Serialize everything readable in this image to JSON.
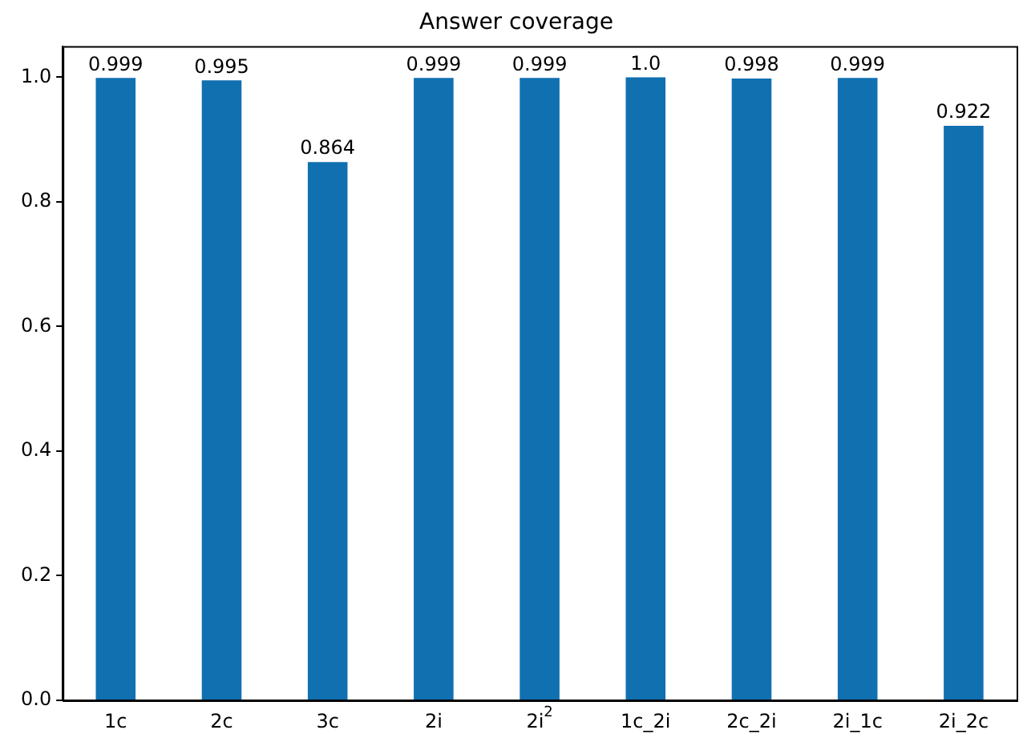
{
  "chart_data": {
    "type": "bar",
    "title": "Answer coverage",
    "categories": [
      "1c",
      "2c",
      "3c",
      "2i",
      "2i$^{2}$",
      "1c_2i",
      "2c_2i",
      "2i_1c",
      "2i_2c"
    ],
    "values": [
      0.999,
      0.995,
      0.864,
      0.999,
      0.999,
      1.0,
      0.998,
      0.999,
      0.922
    ],
    "value_labels": [
      "0.999",
      "0.995",
      "0.864",
      "0.999",
      "0.999",
      "1.0",
      "0.998",
      "0.999",
      "0.922"
    ],
    "color": "#1170b0",
    "ylim": [
      0,
      1.05
    ],
    "yticks": [
      {
        "value": 0,
        "label": "0.0"
      },
      {
        "value": 0.2,
        "label": "0.2"
      },
      {
        "value": 0.4,
        "label": "0.4"
      },
      {
        "value": 0.6,
        "label": "0.6"
      },
      {
        "value": 0.8,
        "label": "0.8"
      },
      {
        "value": 1,
        "label": "1.0"
      }
    ],
    "grid": false,
    "legend": false
  }
}
